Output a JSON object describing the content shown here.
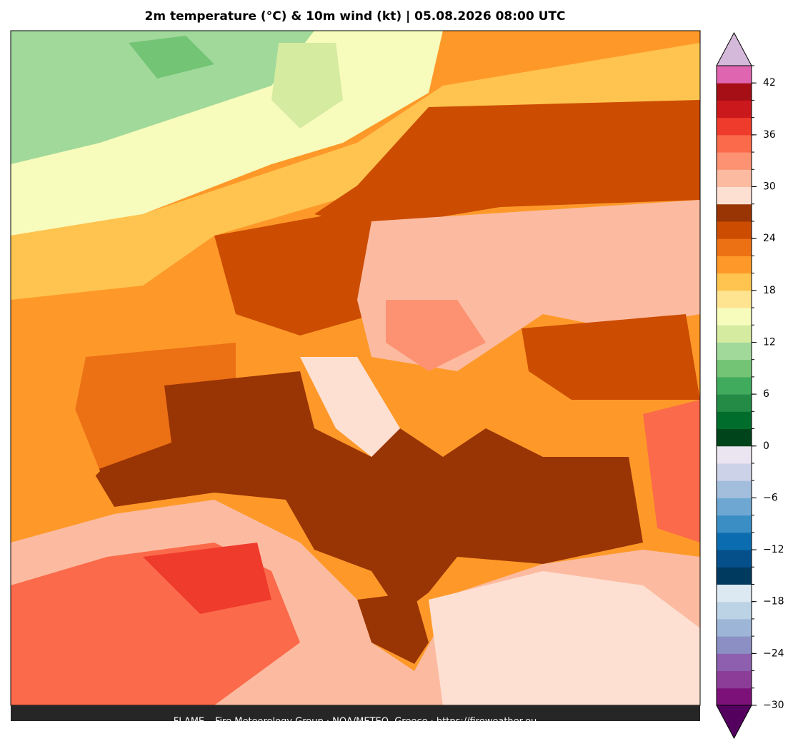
{
  "header": {
    "title": "2m temperature (°C) & 10m wind (kt)  |  05.08.2026 08:00 UTC"
  },
  "footer": {
    "text": "FLAME – Fire Meteorology Group · NOA/METEO, Greece · https://fireweather.eu"
  },
  "colorbar": {
    "bounds": [
      -30,
      -28,
      -26,
      -24,
      -22,
      -20,
      -18,
      -16,
      -14,
      -12,
      -10,
      -8,
      -6,
      -4,
      -2,
      0,
      2,
      4,
      6,
      8,
      10,
      12,
      14,
      16,
      18,
      20,
      22,
      24,
      26,
      28,
      30,
      32,
      34,
      36,
      38,
      40,
      42,
      44
    ],
    "colors": [
      "#7b1179",
      "#8b3d98",
      "#8d5fae",
      "#8c8fc4",
      "#9db5d6",
      "#bcd3e6",
      "#dde9f2",
      "#003a5f",
      "#05508a",
      "#0b6db0",
      "#3a8ec4",
      "#6ea8d2",
      "#a3bedd",
      "#ccd2e8",
      "#ebe5f1",
      "#00441b",
      "#006d2c",
      "#238b45",
      "#41ab5d",
      "#74c476",
      "#a1d99b",
      "#d4eba0",
      "#f7fbbb",
      "#fee391",
      "#fec44f",
      "#fe9929",
      "#ec7014",
      "#cc4c02",
      "#993404",
      "#fee0d2",
      "#fcbba1",
      "#fc9272",
      "#fb6a4a",
      "#ef3b2c",
      "#cb181d",
      "#a50f15",
      "#df65b0"
    ],
    "under_color": "#54005f",
    "over_color": "#d4b9da",
    "ticks": [
      {
        "value": -30,
        "label": "−30"
      },
      {
        "value": -24,
        "label": "−24"
      },
      {
        "value": -18,
        "label": "−18"
      },
      {
        "value": -12,
        "label": "−12"
      },
      {
        "value": -6,
        "label": "−6"
      },
      0,
      6,
      12,
      18,
      24,
      30,
      36,
      42
    ]
  }
}
